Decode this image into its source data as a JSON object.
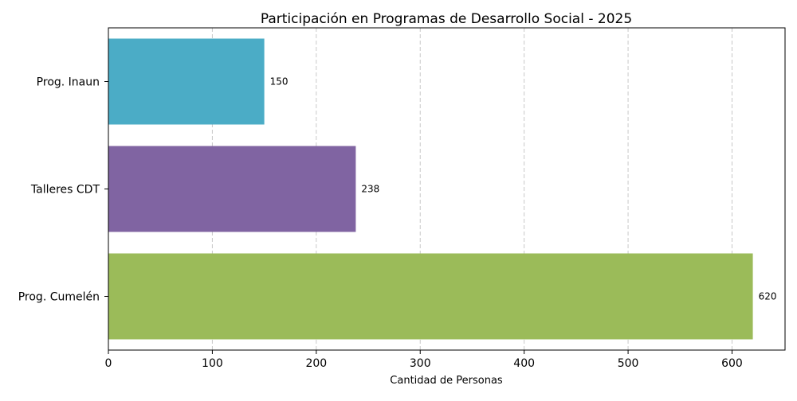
{
  "chart_data": {
    "type": "bar",
    "orientation": "horizontal",
    "title": "Participación en Programas de Desarrollo Social - 2025",
    "xlabel": "Cantidad de Personas",
    "ylabel": "",
    "categories": [
      "Prog. Inaun",
      "Talleres CDT",
      "Prog. Cumelén"
    ],
    "values": [
      150,
      238,
      620
    ],
    "colors": [
      "#4bacc6",
      "#8064a2",
      "#9bbb59"
    ],
    "xlim": [
      0,
      651
    ],
    "xticks": [
      0,
      100,
      200,
      300,
      400,
      500,
      600
    ],
    "grid": "x-dashed",
    "legend": "none"
  }
}
